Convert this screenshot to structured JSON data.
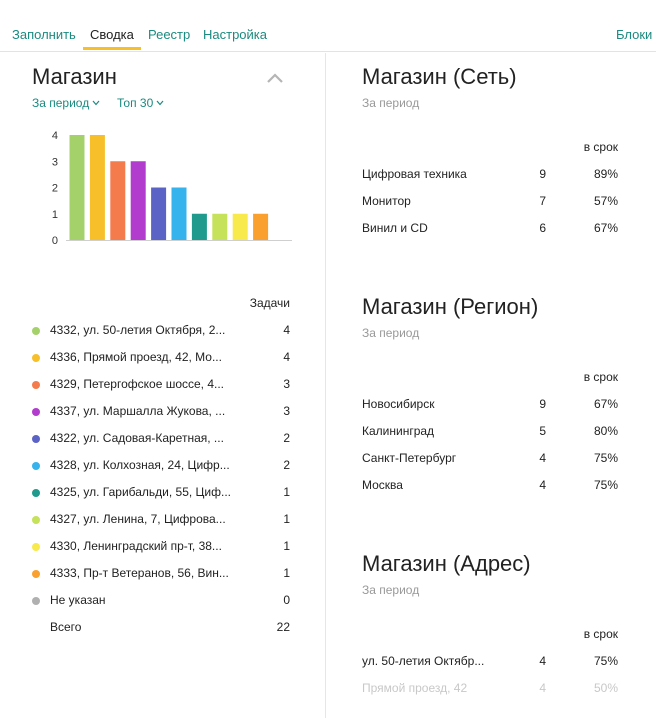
{
  "tabs": [
    {
      "label": "Заполнить",
      "active": false
    },
    {
      "label": "Сводка",
      "active": true
    },
    {
      "label": "Реестр",
      "active": false
    },
    {
      "label": "Настройка",
      "active": false
    }
  ],
  "blocks_label": "Блоки",
  "accent_color": "#1b8a80",
  "tab_underline_color": "#f7c02a",
  "left_panel": {
    "title": "Магазин",
    "filters": {
      "period": "За период",
      "top": "Топ 30"
    },
    "list_header": "Задачи",
    "items": [
      {
        "name": "4332, ул. 50-летия Октября, 2...",
        "value": "4",
        "color": "#a5d16b"
      },
      {
        "name": "4336, Прямой проезд, 42, Мо...",
        "value": "4",
        "color": "#f7c02a"
      },
      {
        "name": "4329, Петергофское шоссе, 4...",
        "value": "3",
        "color": "#f47b4b"
      },
      {
        "name": "4337, ул. Маршалла Жукова, ...",
        "value": "3",
        "color": "#b23ccd"
      },
      {
        "name": "4322, ул. Садовая-Каретная, ...",
        "value": "2",
        "color": "#5c63c6"
      },
      {
        "name": "4328, ул. Колхозная, 24, Цифр...",
        "value": "2",
        "color": "#36b2ec"
      },
      {
        "name": "4325, ул. Гарибальди, 55, Циф...",
        "value": "1",
        "color": "#1f9a8d"
      },
      {
        "name": "4327, ул. Ленина, 7, Цифрова...",
        "value": "1",
        "color": "#c6e15a"
      },
      {
        "name": "4330, Ленинградский пр-т, 38...",
        "value": "1",
        "color": "#f8e94d"
      },
      {
        "name": "4333, Пр-т Ветеранов, 56, Вин...",
        "value": "1",
        "color": "#f9a02e"
      },
      {
        "name": "Не указан",
        "value": "0",
        "color": "#b0b0b0"
      }
    ],
    "total": {
      "label": "Всего",
      "value": "22"
    }
  },
  "chart_data": {
    "type": "bar",
    "categories": [
      "4332",
      "4336",
      "4329",
      "4337",
      "4322",
      "4328",
      "4325",
      "4327",
      "4330",
      "4333"
    ],
    "values": [
      4,
      4,
      3,
      3,
      2,
      2,
      1,
      1,
      1,
      1
    ],
    "colors": [
      "#a5d16b",
      "#f7c02a",
      "#f47b4b",
      "#b23ccd",
      "#5c63c6",
      "#36b2ec",
      "#1f9a8d",
      "#c6e15a",
      "#f8e94d",
      "#f9a02e"
    ],
    "yticks": [
      "0",
      "1",
      "2",
      "3",
      "4"
    ],
    "ylim": [
      0,
      4
    ]
  },
  "right_sections": [
    {
      "title": "Магазин (Сеть)",
      "subtitle": "За период",
      "column_header": "в срок",
      "rows": [
        {
          "name": "Цифровая техника",
          "count": "9",
          "percent": "89%"
        },
        {
          "name": "Монитор",
          "count": "7",
          "percent": "57%"
        },
        {
          "name": "Винил и CD",
          "count": "6",
          "percent": "67%"
        }
      ]
    },
    {
      "title": "Магазин (Регион)",
      "subtitle": "За период",
      "column_header": "в срок",
      "rows": [
        {
          "name": "Новосибирск",
          "count": "9",
          "percent": "67%"
        },
        {
          "name": "Калининград",
          "count": "5",
          "percent": "80%"
        },
        {
          "name": "Санкт-Петербург",
          "count": "4",
          "percent": "75%"
        },
        {
          "name": "Москва",
          "count": "4",
          "percent": "75%"
        }
      ]
    },
    {
      "title": "Магазин (Адрес)",
      "subtitle": "За период",
      "column_header": "в срок",
      "rows": [
        {
          "name": "ул. 50-летия Октябр...",
          "count": "4",
          "percent": "75%"
        },
        {
          "name": "Прямой проезд, 42",
          "count": "4",
          "percent": "50%"
        }
      ]
    }
  ]
}
